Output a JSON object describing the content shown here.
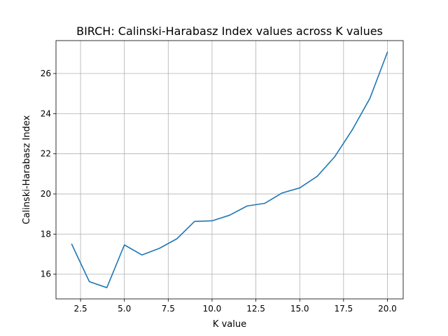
{
  "chart_data": {
    "type": "line",
    "title": "BIRCH: Calinski-Harabasz Index values across K values",
    "xlabel": "K value",
    "ylabel": "Calinski-Harabasz Index",
    "grid": true,
    "xlim": [
      1.1,
      20.9
    ],
    "ylim": [
      14.77,
      27.64
    ],
    "xticks": [
      2.5,
      5.0,
      7.5,
      10.0,
      12.5,
      15.0,
      17.5,
      20.0
    ],
    "xtick_labels": [
      "2.5",
      "5.0",
      "7.5",
      "10.0",
      "12.5",
      "15.0",
      "17.5",
      "20.0"
    ],
    "yticks": [
      16,
      18,
      20,
      22,
      24,
      26
    ],
    "ytick_labels": [
      "16",
      "18",
      "20",
      "22",
      "24",
      "26"
    ],
    "series": [
      {
        "color": "#1f77b4",
        "x": [
          2,
          3,
          4,
          5,
          6,
          7,
          8,
          9,
          10,
          11,
          12,
          13,
          14,
          15,
          16,
          17,
          18,
          19,
          20
        ],
        "y": [
          17.49,
          15.63,
          15.33,
          17.46,
          16.96,
          17.29,
          17.77,
          18.63,
          18.66,
          18.94,
          19.4,
          19.53,
          20.05,
          20.3,
          20.88,
          21.86,
          23.2,
          24.76,
          27.06
        ]
      }
    ]
  }
}
